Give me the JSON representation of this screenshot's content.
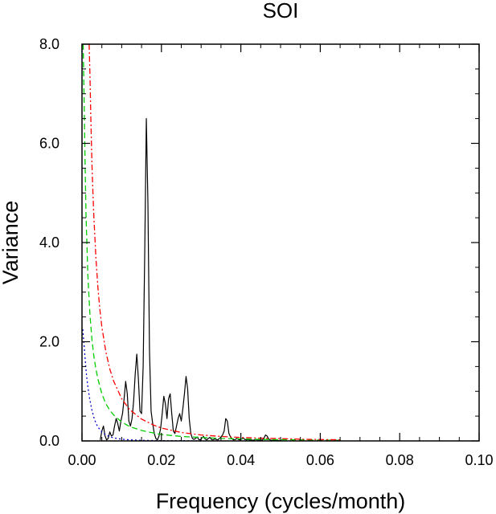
{
  "chart_data": {
    "type": "line",
    "title": "SOI",
    "xlabel": "Frequency (cycles/month)",
    "ylabel": "Variance",
    "xlim": [
      0.0,
      0.1
    ],
    "ylim": [
      0.0,
      8.0
    ],
    "xticks": [
      0.0,
      0.02,
      0.04,
      0.06,
      0.08,
      0.1
    ],
    "xtick_labels": [
      "0.00",
      "0.02",
      "0.04",
      "0.06",
      "0.08",
      "0.10"
    ],
    "yticks": [
      0.0,
      2.0,
      4.0,
      6.0,
      8.0
    ],
    "ytick_labels": [
      "0.0",
      "2.0",
      "4.0",
      "6.0",
      "8.0"
    ],
    "grid": false,
    "series": [
      {
        "style": "solid",
        "color": "#000000",
        "x": [
          0.0046,
          0.005,
          0.0054,
          0.0058,
          0.0062,
          0.0066,
          0.007,
          0.0074,
          0.0078,
          0.0082,
          0.0086,
          0.009,
          0.0094,
          0.0098,
          0.0102,
          0.0106,
          0.011,
          0.0114,
          0.0118,
          0.0122,
          0.0126,
          0.013,
          0.0134,
          0.0138,
          0.0142,
          0.0146,
          0.015,
          0.0154,
          0.0158,
          0.0162,
          0.0166,
          0.017,
          0.0174,
          0.0178,
          0.0182,
          0.0186,
          0.019,
          0.0194,
          0.0198,
          0.0202,
          0.0206,
          0.021,
          0.0214,
          0.0218,
          0.0222,
          0.0226,
          0.023,
          0.0234,
          0.0238,
          0.0242,
          0.0246,
          0.025,
          0.0254,
          0.0258,
          0.0262,
          0.0266,
          0.027,
          0.0274,
          0.0278,
          0.0282,
          0.0286,
          0.029,
          0.0294,
          0.0298,
          0.0302,
          0.0306,
          0.031,
          0.0314,
          0.0318,
          0.0322,
          0.0326,
          0.033,
          0.0334,
          0.0338,
          0.0342,
          0.0346,
          0.035,
          0.0354,
          0.0358,
          0.0362,
          0.0366,
          0.037,
          0.0374,
          0.0378,
          0.0382,
          0.0386,
          0.039,
          0.0394,
          0.0398,
          0.0402,
          0.0406,
          0.041,
          0.0414,
          0.0418,
          0.0422,
          0.0426,
          0.043,
          0.0434,
          0.0438,
          0.0442,
          0.0446,
          0.045,
          0.0454,
          0.0458,
          0.0462,
          0.0466,
          0.047,
          0.0474,
          0.0478,
          0.0482,
          0.0486,
          0.049,
          0.0494,
          0.0498,
          0.0502
        ],
        "y": [
          0.02,
          0.2,
          0.3,
          0.1,
          0.02,
          0.05,
          0.18,
          0.1,
          0.12,
          0.3,
          0.45,
          0.35,
          0.2,
          0.4,
          0.55,
          0.85,
          1.2,
          0.95,
          0.4,
          0.3,
          0.45,
          0.8,
          1.35,
          1.75,
          1.25,
          0.6,
          0.55,
          1.5,
          3.8,
          6.5,
          4.8,
          1.8,
          0.6,
          0.35,
          0.15,
          0.05,
          0.02,
          0.1,
          0.25,
          0.55,
          0.9,
          0.75,
          0.45,
          0.85,
          0.95,
          0.55,
          0.2,
          0.15,
          0.3,
          0.45,
          0.55,
          0.4,
          0.65,
          0.95,
          1.3,
          1.05,
          0.45,
          0.15,
          0.05,
          0.03,
          0.05,
          0.08,
          0.03,
          0.02,
          0.06,
          0.09,
          0.04,
          0.02,
          0.05,
          0.07,
          0.03,
          0.02,
          0.04,
          0.03,
          0.02,
          0.05,
          0.08,
          0.12,
          0.2,
          0.45,
          0.4,
          0.15,
          0.08,
          0.04,
          0.02,
          0.03,
          0.05,
          0.03,
          0.02,
          0.04,
          0.06,
          0.03,
          0.02,
          0.03,
          0.02,
          0.02,
          0.01,
          0.02,
          0.03,
          0.02,
          0.02,
          0.01,
          0.02,
          0.05,
          0.12,
          0.1,
          0.04,
          0.02,
          0.01,
          0.01,
          0.01,
          0.01,
          0.0,
          0.01,
          0.0
        ]
      },
      {
        "style": "dashed",
        "color": "#00cc00",
        "x": [
          0.0003,
          0.0005,
          0.0008,
          0.001,
          0.0013,
          0.0015,
          0.0018,
          0.002,
          0.0025,
          0.003,
          0.0035,
          0.004,
          0.005,
          0.006,
          0.007,
          0.008,
          0.01,
          0.012,
          0.015,
          0.018,
          0.02,
          0.025,
          0.03,
          0.035,
          0.04,
          0.045,
          0.05,
          0.055,
          0.06,
          0.065
        ],
        "y": [
          8.0,
          7.0,
          5.5,
          4.6,
          3.8,
          3.3,
          2.85,
          2.55,
          2.05,
          1.7,
          1.45,
          1.25,
          0.95,
          0.75,
          0.62,
          0.52,
          0.38,
          0.29,
          0.21,
          0.16,
          0.13,
          0.09,
          0.07,
          0.05,
          0.04,
          0.03,
          0.025,
          0.02,
          0.015,
          0.012
        ]
      },
      {
        "style": "dash-dot",
        "color": "#ff0000",
        "x": [
          0.0018,
          0.002,
          0.0022,
          0.0025,
          0.0028,
          0.003,
          0.0035,
          0.004,
          0.0045,
          0.005,
          0.006,
          0.007,
          0.008,
          0.01,
          0.012,
          0.015,
          0.018,
          0.02,
          0.025,
          0.03,
          0.035,
          0.04,
          0.045,
          0.05,
          0.055,
          0.06,
          0.065
        ],
        "y": [
          8.0,
          7.4,
          6.6,
          5.6,
          4.9,
          4.5,
          3.7,
          3.1,
          2.65,
          2.3,
          1.8,
          1.45,
          1.2,
          0.85,
          0.63,
          0.44,
          0.32,
          0.26,
          0.17,
          0.12,
          0.09,
          0.07,
          0.055,
          0.045,
          0.035,
          0.028,
          0.022
        ]
      },
      {
        "style": "dotted",
        "color": "#0000cc",
        "x": [
          0.0002,
          0.0004,
          0.0006,
          0.0008,
          0.001,
          0.0012,
          0.0015,
          0.0018,
          0.002,
          0.0025,
          0.003,
          0.0035,
          0.004,
          0.005,
          0.006,
          0.007,
          0.008,
          0.01,
          0.012,
          0.015,
          0.02,
          0.025,
          0.03
        ],
        "y": [
          2.25,
          2.05,
          1.85,
          1.65,
          1.45,
          1.28,
          1.08,
          0.92,
          0.82,
          0.62,
          0.47,
          0.36,
          0.28,
          0.18,
          0.12,
          0.085,
          0.06,
          0.035,
          0.022,
          0.012,
          0.005,
          0.003,
          0.001
        ]
      }
    ]
  }
}
